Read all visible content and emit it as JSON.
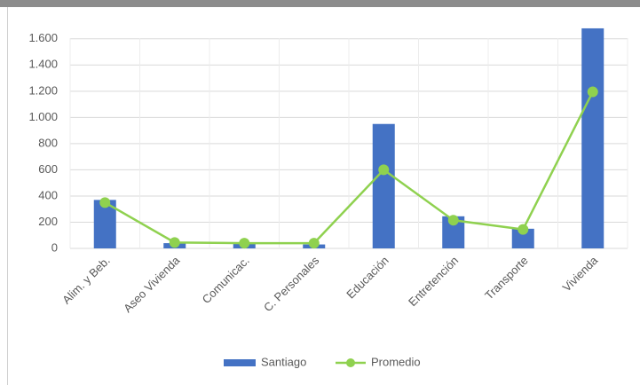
{
  "chart_data": {
    "type": "bar_line",
    "categories": [
      "Alim. y Beb.",
      "Aseo Vivienda",
      "Comunicac.",
      "C. Personales",
      "Educación",
      "Entretención",
      "Transporte",
      "Vivienda"
    ],
    "series": [
      {
        "name": "Santiago",
        "type": "bar",
        "color": "#4472c4",
        "values": [
          370,
          40,
          35,
          30,
          950,
          245,
          150,
          1680
        ]
      },
      {
        "name": "Promedio",
        "type": "line",
        "color": "#8fd14f",
        "values": [
          350,
          45,
          40,
          40,
          600,
          215,
          145,
          1195
        ]
      }
    ],
    "ylim": [
      0,
      1700
    ],
    "yticks": [
      0,
      200,
      400,
      600,
      800,
      {
        "value": 1000,
        "label": "1.000"
      },
      {
        "value": 1200,
        "label": "1.200"
      },
      {
        "value": 1400,
        "label": "1.400"
      },
      {
        "value": 1600,
        "label": "1.600"
      }
    ],
    "grid": true,
    "legend": "bottom"
  }
}
